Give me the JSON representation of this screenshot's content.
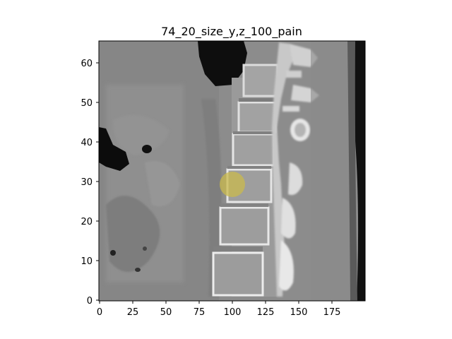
{
  "figure": {
    "title": "74_20_size_y,z_100_pain"
  },
  "axes": {
    "x_ticks": [
      "0",
      "25",
      "50",
      "75",
      "100",
      "125",
      "150",
      "175"
    ],
    "y_ticks": [
      "0",
      "10",
      "20",
      "30",
      "40",
      "50",
      "60"
    ],
    "x_range": [
      0,
      200
    ],
    "y_range": [
      0,
      66
    ]
  },
  "image": {
    "description_kind": "CT sagittal slice of lumbar spine",
    "marker": {
      "x": 100,
      "y": 29,
      "radius": 3.5,
      "color": "#c8b84a"
    }
  },
  "colors": {
    "bone": "#e8e8e8",
    "soft_tissue": "#8a8a8a",
    "air": "#0a0a0a",
    "marker": "#c9ba4c"
  }
}
